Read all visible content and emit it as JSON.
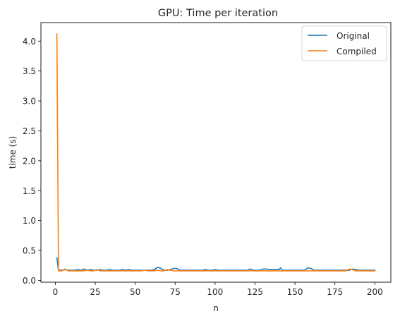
{
  "chart_data": {
    "type": "line",
    "title": "GPU: Time per iteration",
    "xlabel": "n",
    "ylabel": "time (s)",
    "xlim": [
      -9,
      210
    ],
    "ylim": [
      -0.03,
      4.31
    ],
    "xticks": [
      0,
      25,
      50,
      75,
      100,
      125,
      150,
      175,
      200
    ],
    "yticks": [
      0.0,
      0.5,
      1.0,
      1.5,
      2.0,
      2.5,
      3.0,
      3.5,
      4.0
    ],
    "ytick_labels": [
      "0.0",
      "0.5",
      "1.0",
      "1.5",
      "2.0",
      "2.5",
      "3.0",
      "3.5",
      "4.0"
    ],
    "grid": false,
    "legend_position": "upper right",
    "series": [
      {
        "name": "Original",
        "color": "#1f77b4",
        "points": [
          [
            1,
            0.38
          ],
          [
            2,
            0.17
          ],
          [
            4,
            0.17
          ],
          [
            6,
            0.18
          ],
          [
            8,
            0.17
          ],
          [
            10,
            0.17
          ],
          [
            12,
            0.17
          ],
          [
            14,
            0.18
          ],
          [
            16,
            0.17
          ],
          [
            18,
            0.19
          ],
          [
            20,
            0.17
          ],
          [
            22,
            0.18
          ],
          [
            24,
            0.17
          ],
          [
            26,
            0.17
          ],
          [
            28,
            0.18
          ],
          [
            30,
            0.17
          ],
          [
            32,
            0.17
          ],
          [
            34,
            0.18
          ],
          [
            36,
            0.17
          ],
          [
            38,
            0.17
          ],
          [
            40,
            0.17
          ],
          [
            42,
            0.18
          ],
          [
            44,
            0.17
          ],
          [
            46,
            0.18
          ],
          [
            48,
            0.17
          ],
          [
            50,
            0.17
          ],
          [
            52,
            0.17
          ],
          [
            54,
            0.17
          ],
          [
            56,
            0.17
          ],
          [
            58,
            0.17
          ],
          [
            60,
            0.17
          ],
          [
            62,
            0.18
          ],
          [
            64,
            0.22
          ],
          [
            66,
            0.2
          ],
          [
            68,
            0.17
          ],
          [
            70,
            0.17
          ],
          [
            72,
            0.18
          ],
          [
            74,
            0.2
          ],
          [
            76,
            0.2
          ],
          [
            78,
            0.17
          ],
          [
            80,
            0.17
          ],
          [
            82,
            0.17
          ],
          [
            84,
            0.17
          ],
          [
            86,
            0.17
          ],
          [
            88,
            0.17
          ],
          [
            90,
            0.17
          ],
          [
            92,
            0.17
          ],
          [
            94,
            0.18
          ],
          [
            96,
            0.17
          ],
          [
            98,
            0.17
          ],
          [
            100,
            0.18
          ],
          [
            102,
            0.17
          ],
          [
            104,
            0.17
          ],
          [
            106,
            0.17
          ],
          [
            108,
            0.17
          ],
          [
            110,
            0.17
          ],
          [
            112,
            0.17
          ],
          [
            114,
            0.17
          ],
          [
            116,
            0.17
          ],
          [
            118,
            0.17
          ],
          [
            120,
            0.17
          ],
          [
            122,
            0.19
          ],
          [
            124,
            0.17
          ],
          [
            126,
            0.17
          ],
          [
            128,
            0.17
          ],
          [
            130,
            0.19
          ],
          [
            132,
            0.19
          ],
          [
            134,
            0.18
          ],
          [
            136,
            0.18
          ],
          [
            138,
            0.18
          ],
          [
            140,
            0.18
          ],
          [
            141,
            0.21
          ],
          [
            142,
            0.17
          ],
          [
            144,
            0.17
          ],
          [
            146,
            0.17
          ],
          [
            148,
            0.17
          ],
          [
            150,
            0.17
          ],
          [
            152,
            0.17
          ],
          [
            154,
            0.17
          ],
          [
            156,
            0.17
          ],
          [
            158,
            0.21
          ],
          [
            160,
            0.2
          ],
          [
            162,
            0.17
          ],
          [
            164,
            0.17
          ],
          [
            166,
            0.17
          ],
          [
            168,
            0.17
          ],
          [
            170,
            0.17
          ],
          [
            172,
            0.17
          ],
          [
            174,
            0.17
          ],
          [
            176,
            0.17
          ],
          [
            178,
            0.17
          ],
          [
            180,
            0.17
          ],
          [
            182,
            0.17
          ],
          [
            184,
            0.17
          ],
          [
            186,
            0.19
          ],
          [
            188,
            0.18
          ],
          [
            190,
            0.17
          ],
          [
            192,
            0.17
          ],
          [
            194,
            0.17
          ],
          [
            196,
            0.17
          ],
          [
            198,
            0.17
          ],
          [
            200,
            0.17
          ]
        ]
      },
      {
        "name": "Compiled",
        "color": "#ff7f0e",
        "points": [
          [
            1,
            4.12
          ],
          [
            2,
            0.16
          ],
          [
            4,
            0.16
          ],
          [
            6,
            0.19
          ],
          [
            8,
            0.16
          ],
          [
            10,
            0.16
          ],
          [
            12,
            0.16
          ],
          [
            14,
            0.16
          ],
          [
            16,
            0.16
          ],
          [
            18,
            0.16
          ],
          [
            20,
            0.17
          ],
          [
            22,
            0.16
          ],
          [
            24,
            0.16
          ],
          [
            26,
            0.18
          ],
          [
            28,
            0.16
          ],
          [
            30,
            0.16
          ],
          [
            32,
            0.16
          ],
          [
            34,
            0.16
          ],
          [
            36,
            0.16
          ],
          [
            38,
            0.16
          ],
          [
            40,
            0.16
          ],
          [
            42,
            0.16
          ],
          [
            44,
            0.16
          ],
          [
            46,
            0.16
          ],
          [
            48,
            0.16
          ],
          [
            50,
            0.16
          ],
          [
            52,
            0.16
          ],
          [
            54,
            0.16
          ],
          [
            56,
            0.17
          ],
          [
            58,
            0.16
          ],
          [
            60,
            0.16
          ],
          [
            62,
            0.16
          ],
          [
            64,
            0.17
          ],
          [
            66,
            0.16
          ],
          [
            68,
            0.16
          ],
          [
            70,
            0.18
          ],
          [
            72,
            0.17
          ],
          [
            74,
            0.16
          ],
          [
            76,
            0.16
          ],
          [
            78,
            0.16
          ],
          [
            80,
            0.16
          ],
          [
            82,
            0.16
          ],
          [
            84,
            0.16
          ],
          [
            86,
            0.16
          ],
          [
            88,
            0.16
          ],
          [
            90,
            0.16
          ],
          [
            92,
            0.16
          ],
          [
            94,
            0.16
          ],
          [
            96,
            0.16
          ],
          [
            98,
            0.16
          ],
          [
            100,
            0.16
          ],
          [
            102,
            0.16
          ],
          [
            104,
            0.16
          ],
          [
            106,
            0.16
          ],
          [
            108,
            0.16
          ],
          [
            110,
            0.16
          ],
          [
            112,
            0.16
          ],
          [
            114,
            0.16
          ],
          [
            116,
            0.16
          ],
          [
            118,
            0.16
          ],
          [
            120,
            0.16
          ],
          [
            122,
            0.16
          ],
          [
            124,
            0.16
          ],
          [
            126,
            0.16
          ],
          [
            128,
            0.16
          ],
          [
            130,
            0.16
          ],
          [
            132,
            0.16
          ],
          [
            134,
            0.16
          ],
          [
            136,
            0.16
          ],
          [
            138,
            0.16
          ],
          [
            140,
            0.16
          ],
          [
            142,
            0.16
          ],
          [
            144,
            0.16
          ],
          [
            146,
            0.16
          ],
          [
            148,
            0.16
          ],
          [
            150,
            0.16
          ],
          [
            152,
            0.16
          ],
          [
            154,
            0.16
          ],
          [
            156,
            0.16
          ],
          [
            158,
            0.16
          ],
          [
            160,
            0.16
          ],
          [
            162,
            0.16
          ],
          [
            164,
            0.16
          ],
          [
            166,
            0.16
          ],
          [
            168,
            0.16
          ],
          [
            170,
            0.16
          ],
          [
            172,
            0.16
          ],
          [
            174,
            0.16
          ],
          [
            176,
            0.16
          ],
          [
            178,
            0.16
          ],
          [
            180,
            0.16
          ],
          [
            182,
            0.16
          ],
          [
            184,
            0.19
          ],
          [
            186,
            0.18
          ],
          [
            188,
            0.16
          ],
          [
            190,
            0.16
          ],
          [
            192,
            0.16
          ],
          [
            194,
            0.16
          ],
          [
            196,
            0.16
          ],
          [
            198,
            0.16
          ],
          [
            200,
            0.16
          ]
        ]
      }
    ]
  }
}
